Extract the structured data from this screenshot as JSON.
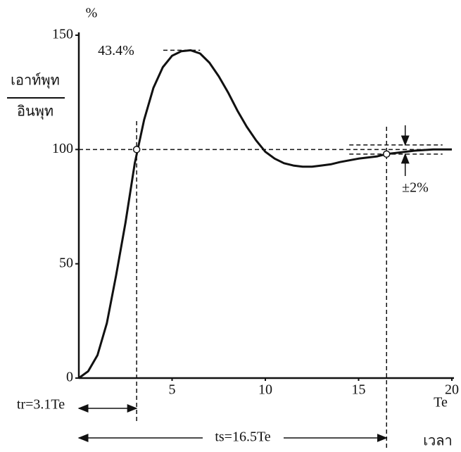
{
  "chart_data": {
    "type": "line",
    "y_unit": "%",
    "y_label_top": "เอาท์พุท",
    "y_label_bottom": "อินพุท",
    "x_label_top": "Te",
    "x_label_bottom": "เวลา",
    "overshoot_label": "43.4%",
    "band_label": "±2%",
    "rise_label": "tr=3.1Te",
    "settling_label": "ts=16.5Te",
    "rise_time": 3.1,
    "settling_time": 16.5,
    "peak": 143.4,
    "setpoint": 100,
    "tolerance_band": [
      98,
      102
    ],
    "x": [
      0,
      0.5,
      1,
      1.5,
      2,
      2.5,
      3,
      3.5,
      4,
      4.5,
      5,
      5.5,
      6,
      6.5,
      7,
      7.5,
      8,
      8.5,
      9,
      9.5,
      10,
      10.5,
      11,
      11.5,
      12,
      12.5,
      13,
      13.5,
      14,
      15,
      16,
      16.5,
      17,
      18,
      19,
      20
    ],
    "values": [
      0,
      3,
      10,
      24,
      45,
      68,
      94,
      113,
      127,
      136,
      141,
      143,
      143.4,
      142,
      138,
      132,
      125,
      117,
      110,
      104,
      99,
      96,
      94,
      93,
      92.5,
      92.5,
      93,
      93.5,
      94.5,
      96,
      97,
      98,
      98.5,
      99.5,
      100,
      100
    ],
    "color": "#111111",
    "xlim": [
      0,
      20
    ],
    "xticks": [
      5,
      10,
      15,
      20
    ],
    "ylim": [
      0,
      150
    ],
    "yticks": [
      0,
      50,
      100,
      150
    ]
  }
}
